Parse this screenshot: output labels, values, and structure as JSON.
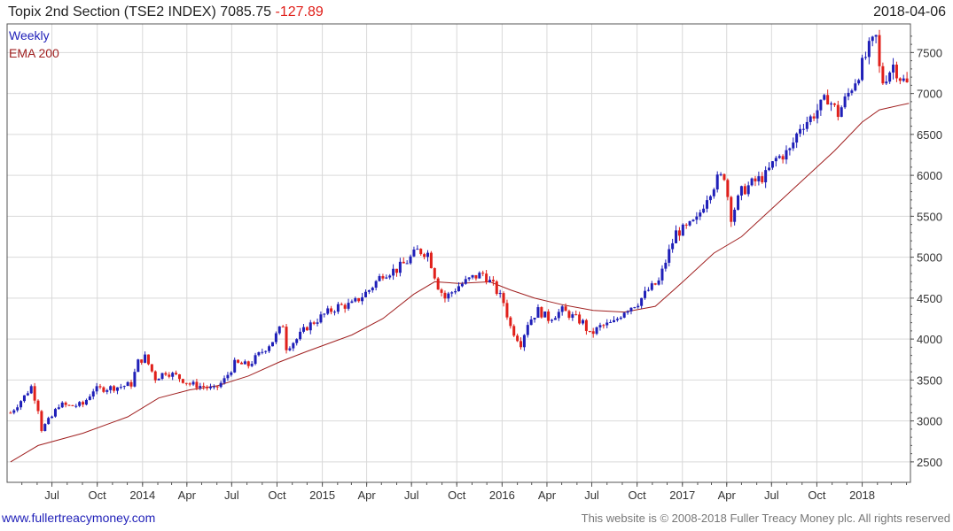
{
  "header": {
    "title": "Topix 2nd Section (TSE2 INDEX)",
    "last": "7085.75",
    "change": "-127.89",
    "date": "2018-04-06"
  },
  "legend": {
    "weekly": "Weekly",
    "ema": "EMA 200"
  },
  "footer": {
    "site": "www.fullertreacymoney.com",
    "copyright": "This website is © 2008-2018 Fuller Treacy Money plc. All rights reserved"
  },
  "colors": {
    "up": "#1f1fb8",
    "down": "#e0201b",
    "ema": "#a02020",
    "grid": "#d9d9d9",
    "axis": "#555555"
  },
  "chart_data": {
    "type": "candlestick",
    "title": "Topix 2nd Section (TSE2 INDEX)",
    "interval": "weekly",
    "y_ticks": [
      2500,
      3000,
      3500,
      4000,
      4500,
      5000,
      5500,
      6000,
      6500,
      7000,
      7500
    ],
    "ylim": [
      2250,
      7850
    ],
    "x_ticks": [
      {
        "label": "Jul",
        "date": "2013-07-01"
      },
      {
        "label": "Oct",
        "date": "2013-10-01"
      },
      {
        "label": "2014",
        "date": "2014-01-01"
      },
      {
        "label": "Apr",
        "date": "2014-04-01"
      },
      {
        "label": "Jul",
        "date": "2014-07-01"
      },
      {
        "label": "Oct",
        "date": "2014-10-01"
      },
      {
        "label": "2015",
        "date": "2015-01-01"
      },
      {
        "label": "Apr",
        "date": "2015-04-01"
      },
      {
        "label": "Jul",
        "date": "2015-07-01"
      },
      {
        "label": "Oct",
        "date": "2015-10-01"
      },
      {
        "label": "2016",
        "date": "2016-01-01"
      },
      {
        "label": "Apr",
        "date": "2016-04-01"
      },
      {
        "label": "Jul",
        "date": "2016-07-01"
      },
      {
        "label": "Oct",
        "date": "2016-10-01"
      },
      {
        "label": "2017",
        "date": "2017-01-01"
      },
      {
        "label": "Apr",
        "date": "2017-04-01"
      },
      {
        "label": "Jul",
        "date": "2017-07-01"
      },
      {
        "label": "Oct",
        "date": "2017-10-01"
      },
      {
        "label": "2018",
        "date": "2018-01-01"
      }
    ],
    "xlim": [
      "2013-04-01",
      "2018-04-09"
    ],
    "close_path": [
      [
        "2013-04-08",
        3100
      ],
      [
        "2013-05-06",
        3300
      ],
      [
        "2013-05-20",
        3420
      ],
      [
        "2013-06-03",
        3150
      ],
      [
        "2013-06-10",
        2900
      ],
      [
        "2013-07-01",
        3050
      ],
      [
        "2013-07-15",
        3200
      ],
      [
        "2013-08-05",
        3180
      ],
      [
        "2013-09-02",
        3200
      ],
      [
        "2013-09-23",
        3380
      ],
      [
        "2013-10-21",
        3400
      ],
      [
        "2013-11-18",
        3420
      ],
      [
        "2013-12-09",
        3450
      ],
      [
        "2013-12-23",
        3720
      ],
      [
        "2014-01-06",
        3780
      ],
      [
        "2014-01-27",
        3520
      ],
      [
        "2014-02-17",
        3600
      ],
      [
        "2014-03-10",
        3550
      ],
      [
        "2014-04-07",
        3450
      ],
      [
        "2014-05-05",
        3420
      ],
      [
        "2014-05-26",
        3380
      ],
      [
        "2014-06-16",
        3500
      ],
      [
        "2014-07-07",
        3700
      ],
      [
        "2014-08-04",
        3680
      ],
      [
        "2014-09-01",
        3850
      ],
      [
        "2014-09-22",
        3980
      ],
      [
        "2014-10-13",
        4180
      ],
      [
        "2014-10-20",
        3900
      ],
      [
        "2014-11-10",
        4000
      ],
      [
        "2014-12-01",
        4150
      ],
      [
        "2015-01-05",
        4300
      ],
      [
        "2015-02-02",
        4400
      ],
      [
        "2015-03-02",
        4420
      ],
      [
        "2015-04-06",
        4600
      ],
      [
        "2015-05-04",
        4800
      ],
      [
        "2015-06-01",
        4850
      ],
      [
        "2015-06-22",
        4950
      ],
      [
        "2015-07-13",
        5080
      ],
      [
        "2015-08-03",
        5050
      ],
      [
        "2015-08-24",
        4650
      ],
      [
        "2015-09-07",
        4500
      ],
      [
        "2015-10-05",
        4650
      ],
      [
        "2015-11-02",
        4750
      ],
      [
        "2015-11-23",
        4800
      ],
      [
        "2015-12-14",
        4650
      ],
      [
        "2016-01-04",
        4450
      ],
      [
        "2016-01-18",
        4150
      ],
      [
        "2016-02-08",
        3950
      ],
      [
        "2016-02-22",
        4200
      ],
      [
        "2016-03-14",
        4350
      ],
      [
        "2016-04-04",
        4250
      ],
      [
        "2016-05-02",
        4350
      ],
      [
        "2016-06-13",
        4200
      ],
      [
        "2016-06-27",
        4050
      ],
      [
        "2016-07-18",
        4150
      ],
      [
        "2016-08-15",
        4200
      ],
      [
        "2016-09-05",
        4350
      ],
      [
        "2016-10-03",
        4450
      ],
      [
        "2016-10-24",
        4600
      ],
      [
        "2016-11-14",
        4700
      ],
      [
        "2016-11-28",
        4950
      ],
      [
        "2016-12-19",
        5300
      ],
      [
        "2017-01-09",
        5350
      ],
      [
        "2017-01-30",
        5450
      ],
      [
        "2017-02-20",
        5750
      ],
      [
        "2017-03-13",
        5950
      ],
      [
        "2017-03-27",
        6000
      ],
      [
        "2017-04-10",
        5500
      ],
      [
        "2017-05-01",
        5800
      ],
      [
        "2017-05-22",
        5900
      ],
      [
        "2017-06-19",
        6000
      ],
      [
        "2017-07-10",
        6200
      ],
      [
        "2017-08-07",
        6300
      ],
      [
        "2017-08-28",
        6600
      ],
      [
        "2017-09-18",
        6700
      ],
      [
        "2017-10-09",
        6850
      ],
      [
        "2017-10-23",
        6950
      ],
      [
        "2017-11-13",
        6750
      ],
      [
        "2017-12-04",
        7000
      ],
      [
        "2017-12-25",
        7250
      ],
      [
        "2018-01-15",
        7550
      ],
      [
        "2018-01-29",
        7680
      ],
      [
        "2018-02-05",
        7300
      ],
      [
        "2018-02-12",
        7150
      ],
      [
        "2018-03-05",
        7350
      ],
      [
        "2018-03-19",
        7200
      ],
      [
        "2018-04-06",
        7085.75
      ]
    ],
    "ema_path": [
      [
        "2013-04-08",
        2500
      ],
      [
        "2013-06-03",
        2700
      ],
      [
        "2013-09-02",
        2850
      ],
      [
        "2013-12-02",
        3050
      ],
      [
        "2014-02-03",
        3280
      ],
      [
        "2014-04-07",
        3380
      ],
      [
        "2014-06-02",
        3430
      ],
      [
        "2014-08-04",
        3550
      ],
      [
        "2014-10-06",
        3720
      ],
      [
        "2014-12-01",
        3850
      ],
      [
        "2015-03-02",
        4050
      ],
      [
        "2015-05-04",
        4250
      ],
      [
        "2015-07-06",
        4550
      ],
      [
        "2015-08-17",
        4700
      ],
      [
        "2015-10-05",
        4680
      ],
      [
        "2015-12-07",
        4700
      ],
      [
        "2016-01-18",
        4600
      ],
      [
        "2016-03-07",
        4500
      ],
      [
        "2016-05-02",
        4420
      ],
      [
        "2016-07-04",
        4350
      ],
      [
        "2016-09-05",
        4330
      ],
      [
        "2016-11-07",
        4400
      ],
      [
        "2017-01-02",
        4700
      ],
      [
        "2017-03-06",
        5050
      ],
      [
        "2017-05-01",
        5250
      ],
      [
        "2017-07-03",
        5600
      ],
      [
        "2017-09-04",
        5950
      ],
      [
        "2017-11-06",
        6300
      ],
      [
        "2018-01-01",
        6650
      ],
      [
        "2018-02-05",
        6800
      ],
      [
        "2018-04-06",
        6880
      ]
    ]
  }
}
